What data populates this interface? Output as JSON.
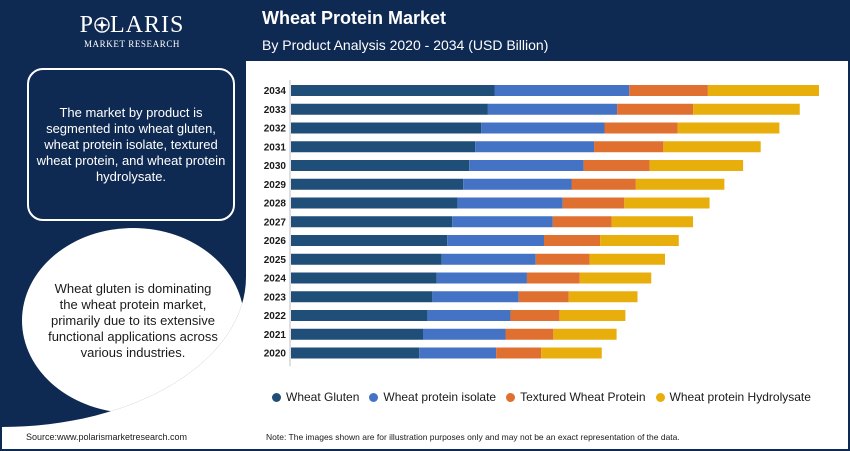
{
  "brand": {
    "name": "POLARIS",
    "tagline": "MARKET RESEARCH"
  },
  "header": {
    "title": "Wheat Protein Market",
    "subtitle": "By Product Analysis 2020 - 2034 (USD Billion)"
  },
  "sidebar": {
    "summary": "The market by product is segmented into wheat gluten, wheat protein isolate, textured wheat protein, and wheat protein hydrolysate.",
    "insight": "Wheat gluten is dominating the wheat protein market, primarily due to its extensive functional applications across various industries."
  },
  "footer": {
    "source": "Source:www.polarismarketresearch.com",
    "note": "Note: The images shown are for illustration purposes only and may not be an exact representation of the data."
  },
  "colors": {
    "navy": "#0f2a52",
    "wheat_gluten": "#1f4e79",
    "wheat_protein_isolate": "#4472c4",
    "textured_wheat_protein": "#e07030",
    "wheat_protein_hydrolysate": "#e8ae0c"
  },
  "chart_data": {
    "type": "bar",
    "orientation": "horizontal",
    "stacked": true,
    "title": "Wheat Protein Market",
    "subtitle": "By Product Analysis 2020 - 2034 (USD Billion)",
    "categories": [
      "2020",
      "2021",
      "2022",
      "2023",
      "2024",
      "2025",
      "2026",
      "2027",
      "2028",
      "2029",
      "2030",
      "2031",
      "2032",
      "2033",
      "2034"
    ],
    "series": [
      {
        "name": "Wheat Gluten",
        "color": "#1f4e79",
        "values": [
          2.33,
          2.4,
          2.48,
          2.57,
          2.65,
          2.74,
          2.84,
          2.93,
          3.03,
          3.13,
          3.24,
          3.35,
          3.46,
          3.58,
          3.7
        ]
      },
      {
        "name": "Wheat protein isolate",
        "color": "#4472c4",
        "values": [
          1.4,
          1.5,
          1.51,
          1.57,
          1.64,
          1.71,
          1.76,
          1.83,
          1.91,
          1.97,
          2.08,
          2.16,
          2.24,
          2.35,
          2.45
        ]
      },
      {
        "name": "Textured Wheat Protein",
        "color": "#e07030",
        "values": [
          0.82,
          0.87,
          0.89,
          0.91,
          0.96,
          0.98,
          1.02,
          1.07,
          1.12,
          1.17,
          1.2,
          1.26,
          1.33,
          1.38,
          1.43
        ]
      },
      {
        "name": "Wheat protein Hydrolysate",
        "color": "#e8ae0c",
        "values": [
          1.1,
          1.15,
          1.2,
          1.25,
          1.3,
          1.37,
          1.43,
          1.48,
          1.55,
          1.61,
          1.7,
          1.77,
          1.85,
          1.94,
          2.02
        ]
      }
    ],
    "xlim": [
      0,
      10
    ],
    "grid": false,
    "legend_position": "bottom",
    "value_labels": false
  }
}
